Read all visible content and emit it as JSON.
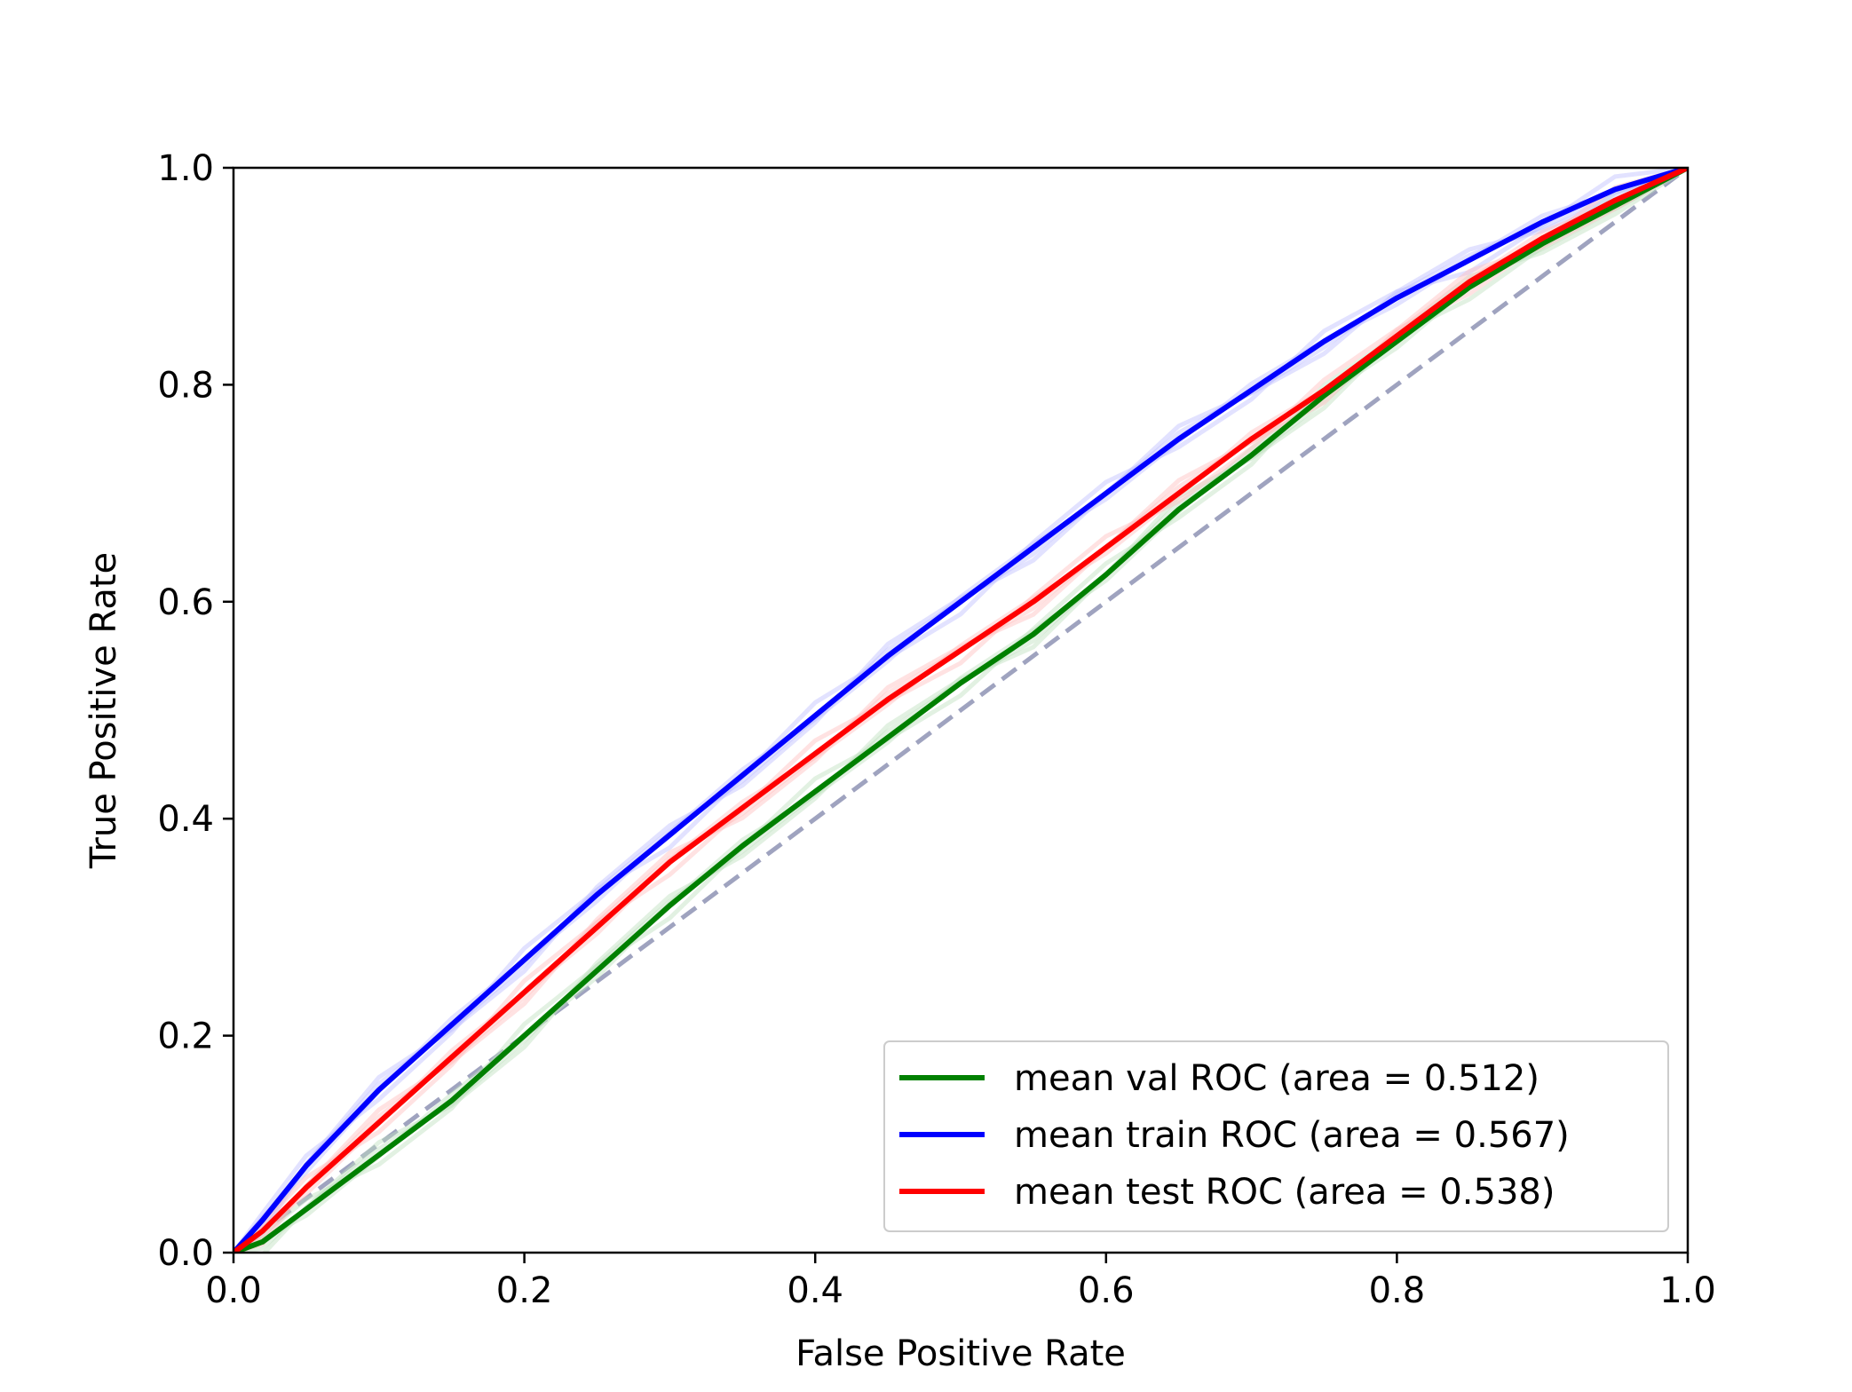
{
  "chart_data": {
    "type": "line",
    "title": "",
    "xlabel": "False Positive Rate",
    "ylabel": "True Positive Rate",
    "xlim": [
      0.0,
      1.0
    ],
    "ylim": [
      0.0,
      1.0
    ],
    "xticks": [
      "0.0",
      "0.2",
      "0.4",
      "0.6",
      "0.8",
      "1.0"
    ],
    "yticks": [
      "0.0",
      "0.2",
      "0.4",
      "0.6",
      "0.8",
      "1.0"
    ],
    "grid": false,
    "legend_position": "lower-right",
    "diagonal_reference": {
      "x": [
        0.0,
        1.0
      ],
      "y": [
        0.0,
        1.0
      ],
      "color": "#8f93b5",
      "style": "dashed"
    },
    "series": [
      {
        "name": "mean val ROC (area = 0.512)",
        "color": "#008000",
        "x": [
          0.0,
          0.02,
          0.05,
          0.1,
          0.15,
          0.2,
          0.25,
          0.3,
          0.35,
          0.4,
          0.45,
          0.5,
          0.55,
          0.6,
          0.65,
          0.7,
          0.75,
          0.8,
          0.85,
          0.9,
          0.95,
          1.0
        ],
        "y": [
          0.0,
          0.01,
          0.04,
          0.09,
          0.14,
          0.2,
          0.26,
          0.32,
          0.375,
          0.425,
          0.475,
          0.525,
          0.57,
          0.625,
          0.685,
          0.735,
          0.79,
          0.84,
          0.89,
          0.93,
          0.965,
          1.0
        ]
      },
      {
        "name": "mean train ROC (area = 0.567)",
        "color": "#0000ff",
        "x": [
          0.0,
          0.02,
          0.05,
          0.1,
          0.15,
          0.2,
          0.25,
          0.3,
          0.35,
          0.4,
          0.45,
          0.5,
          0.55,
          0.6,
          0.65,
          0.7,
          0.75,
          0.8,
          0.85,
          0.9,
          0.95,
          1.0
        ],
        "y": [
          0.0,
          0.03,
          0.08,
          0.15,
          0.21,
          0.27,
          0.33,
          0.385,
          0.44,
          0.495,
          0.55,
          0.6,
          0.65,
          0.7,
          0.75,
          0.795,
          0.84,
          0.88,
          0.915,
          0.95,
          0.98,
          1.0
        ]
      },
      {
        "name": "mean test ROC (area = 0.538)",
        "color": "#ff0000",
        "x": [
          0.0,
          0.02,
          0.05,
          0.1,
          0.15,
          0.2,
          0.25,
          0.3,
          0.35,
          0.4,
          0.45,
          0.5,
          0.55,
          0.6,
          0.65,
          0.7,
          0.75,
          0.8,
          0.85,
          0.9,
          0.95,
          1.0
        ],
        "y": [
          0.0,
          0.02,
          0.06,
          0.12,
          0.18,
          0.24,
          0.3,
          0.36,
          0.41,
          0.46,
          0.51,
          0.555,
          0.6,
          0.65,
          0.7,
          0.75,
          0.795,
          0.845,
          0.895,
          0.935,
          0.97,
          1.0
        ]
      }
    ]
  }
}
